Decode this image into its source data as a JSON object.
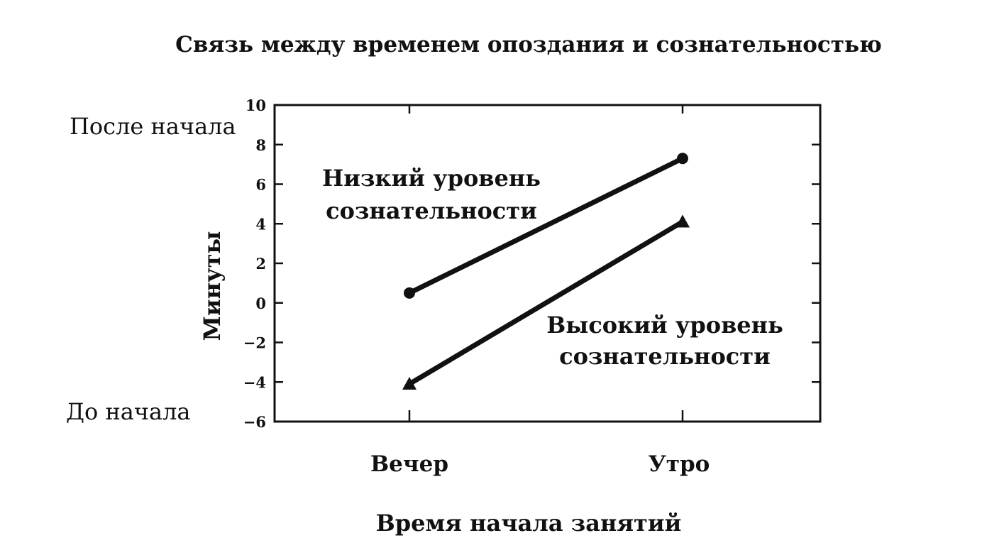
{
  "chart_data": {
    "type": "line",
    "title": "Связь между временем опоздания и сознательностью",
    "xlabel": "Время начала занятий",
    "ylabel": "Минуты",
    "categories": [
      "Вечер",
      "Утро"
    ],
    "y_ticks": [
      10,
      8,
      6,
      4,
      2,
      0,
      -2,
      -4,
      -6
    ],
    "y_tick_labels": [
      "10",
      "8",
      "6",
      "4",
      "2",
      "0",
      "−2",
      "−4",
      "−6"
    ],
    "ylim": [
      -6,
      10
    ],
    "y_side_labels": {
      "top": "После начала",
      "bottom": "До начала"
    },
    "grid": false,
    "legend": "inline labels",
    "series": [
      {
        "name_lines": [
          "Низкий уровень",
          "сознательности"
        ],
        "marker": "circle",
        "values": [
          0.5,
          7.3
        ]
      },
      {
        "name_lines": [
          "Высокий уровень",
          "сознательности"
        ],
        "marker": "triangle",
        "values": [
          -4.1,
          4.1
        ]
      }
    ],
    "colors": {
      "ink": "#111111",
      "background": "#ffffff"
    }
  }
}
